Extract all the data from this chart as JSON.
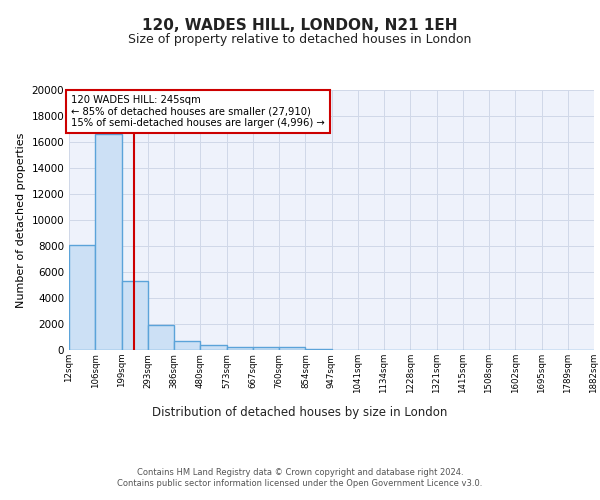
{
  "title1": "120, WADES HILL, LONDON, N21 1EH",
  "title2": "Size of property relative to detached houses in London",
  "xlabel": "Distribution of detached houses by size in London",
  "ylabel": "Number of detached properties",
  "bin_edges": [
    12,
    106,
    199,
    293,
    386,
    480,
    573,
    667,
    760,
    854,
    947,
    1041,
    1134,
    1228,
    1321,
    1415,
    1508,
    1602,
    1695,
    1789,
    1882
  ],
  "bar_heights": [
    8100,
    16600,
    5300,
    1900,
    700,
    350,
    250,
    200,
    200,
    50,
    30,
    20,
    15,
    10,
    8,
    5,
    4,
    3,
    2,
    1
  ],
  "bar_facecolor": "#cce0f5",
  "bar_edgecolor": "#5ba3d9",
  "bar_linewidth": 1.0,
  "vline_x": 245,
  "vline_color": "#cc0000",
  "vline_linewidth": 1.5,
  "annotation_text": "120 WADES HILL: 245sqm\n← 85% of detached houses are smaller (27,910)\n15% of semi-detached houses are larger (4,996) →",
  "annotation_box_edgecolor": "#cc0000",
  "annotation_box_facecolor": "#ffffff",
  "ylim": [
    0,
    20000
  ],
  "yticks": [
    0,
    2000,
    4000,
    6000,
    8000,
    10000,
    12000,
    14000,
    16000,
    18000,
    20000
  ],
  "tick_labels": [
    "12sqm",
    "106sqm",
    "199sqm",
    "293sqm",
    "386sqm",
    "480sqm",
    "573sqm",
    "667sqm",
    "760sqm",
    "854sqm",
    "947sqm",
    "1041sqm",
    "1134sqm",
    "1228sqm",
    "1321sqm",
    "1415sqm",
    "1508sqm",
    "1602sqm",
    "1695sqm",
    "1789sqm",
    "1882sqm"
  ],
  "grid_color": "#d0d8e8",
  "bg_color": "#eef2fb",
  "footer_text": "Contains HM Land Registry data © Crown copyright and database right 2024.\nContains public sector information licensed under the Open Government Licence v3.0.",
  "title1_fontsize": 11,
  "title2_fontsize": 9,
  "xlabel_fontsize": 8.5,
  "ylabel_fontsize": 8
}
